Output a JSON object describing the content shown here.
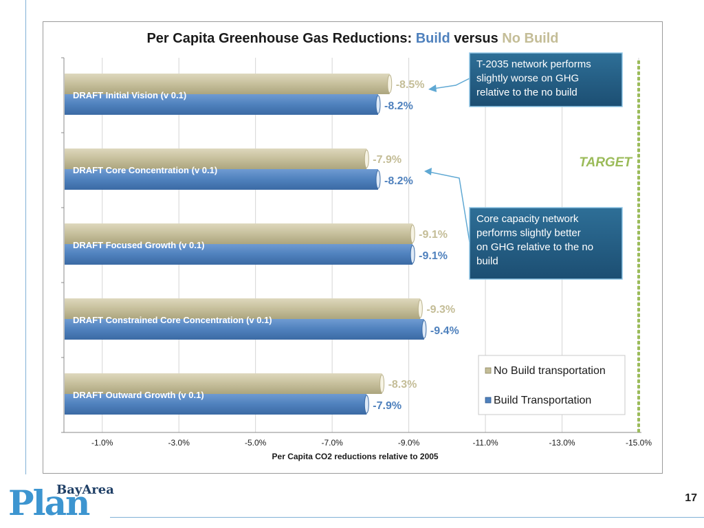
{
  "slide": {
    "page_number": "17",
    "logo": {
      "top": "BayArea",
      "bottom": "Plan"
    }
  },
  "chart_data": {
    "type": "bar",
    "orientation": "horizontal",
    "title_parts": [
      {
        "text": "Per Capita Greenhouse Gas Reductions: ",
        "role": "plain"
      },
      {
        "text": "Build",
        "role": "build"
      },
      {
        "text": " versus ",
        "role": "plain"
      },
      {
        "text": "No Build",
        "role": "nobuild"
      }
    ],
    "categories": [
      "DRAFT Initial Vision (v 0.1)",
      "DRAFT Core Concentration (v 0.1)",
      "DRAFT Focused Growth (v 0.1)",
      "DRAFT Constrained Core Concentration (v 0.1)",
      "DRAFT Outward Growth (v 0.1)"
    ],
    "series": [
      {
        "name": "No Build transportation",
        "values": [
          -8.5,
          -7.9,
          -9.1,
          -9.3,
          -8.3
        ],
        "labels": [
          "-8.5%",
          "-7.9%",
          "-9.1%",
          "-9.3%",
          "-8.3%"
        ],
        "color": "#c4bd97"
      },
      {
        "name": "Build Transportation",
        "values": [
          -8.2,
          -8.2,
          -9.1,
          -9.4,
          -7.9
        ],
        "labels": [
          "-8.2%",
          "-8.2%",
          "-9.1%",
          "-9.4%",
          "-7.9%"
        ],
        "color": "#4f81bd"
      }
    ],
    "xlabel": "Per Capita CO2 reductions relative to 2005",
    "xlim": [
      0,
      -15
    ],
    "xticks": [
      -1,
      -3,
      -5,
      -7,
      -9,
      -11,
      -13,
      -15
    ],
    "xtick_labels": [
      "-1.0%",
      "-3.0%",
      "-5.0%",
      "-7.0%",
      "-9.0%",
      "-11.0%",
      "-13.0%",
      "-15.0%"
    ],
    "grid": true,
    "target": {
      "value": -15,
      "label": "TARGET",
      "color": "#9bbb59"
    },
    "annotations": [
      {
        "text": "T-2035 network performs slightly worse on GHG relative to the no build",
        "points_to": "DRAFT Initial Vision (v 0.1)"
      },
      {
        "text": "Core capacity network performs slightly better on GHG relative to the no build",
        "points_to": "DRAFT Core Concentration (v 0.1)"
      }
    ],
    "legend_position": "bottom-right"
  }
}
